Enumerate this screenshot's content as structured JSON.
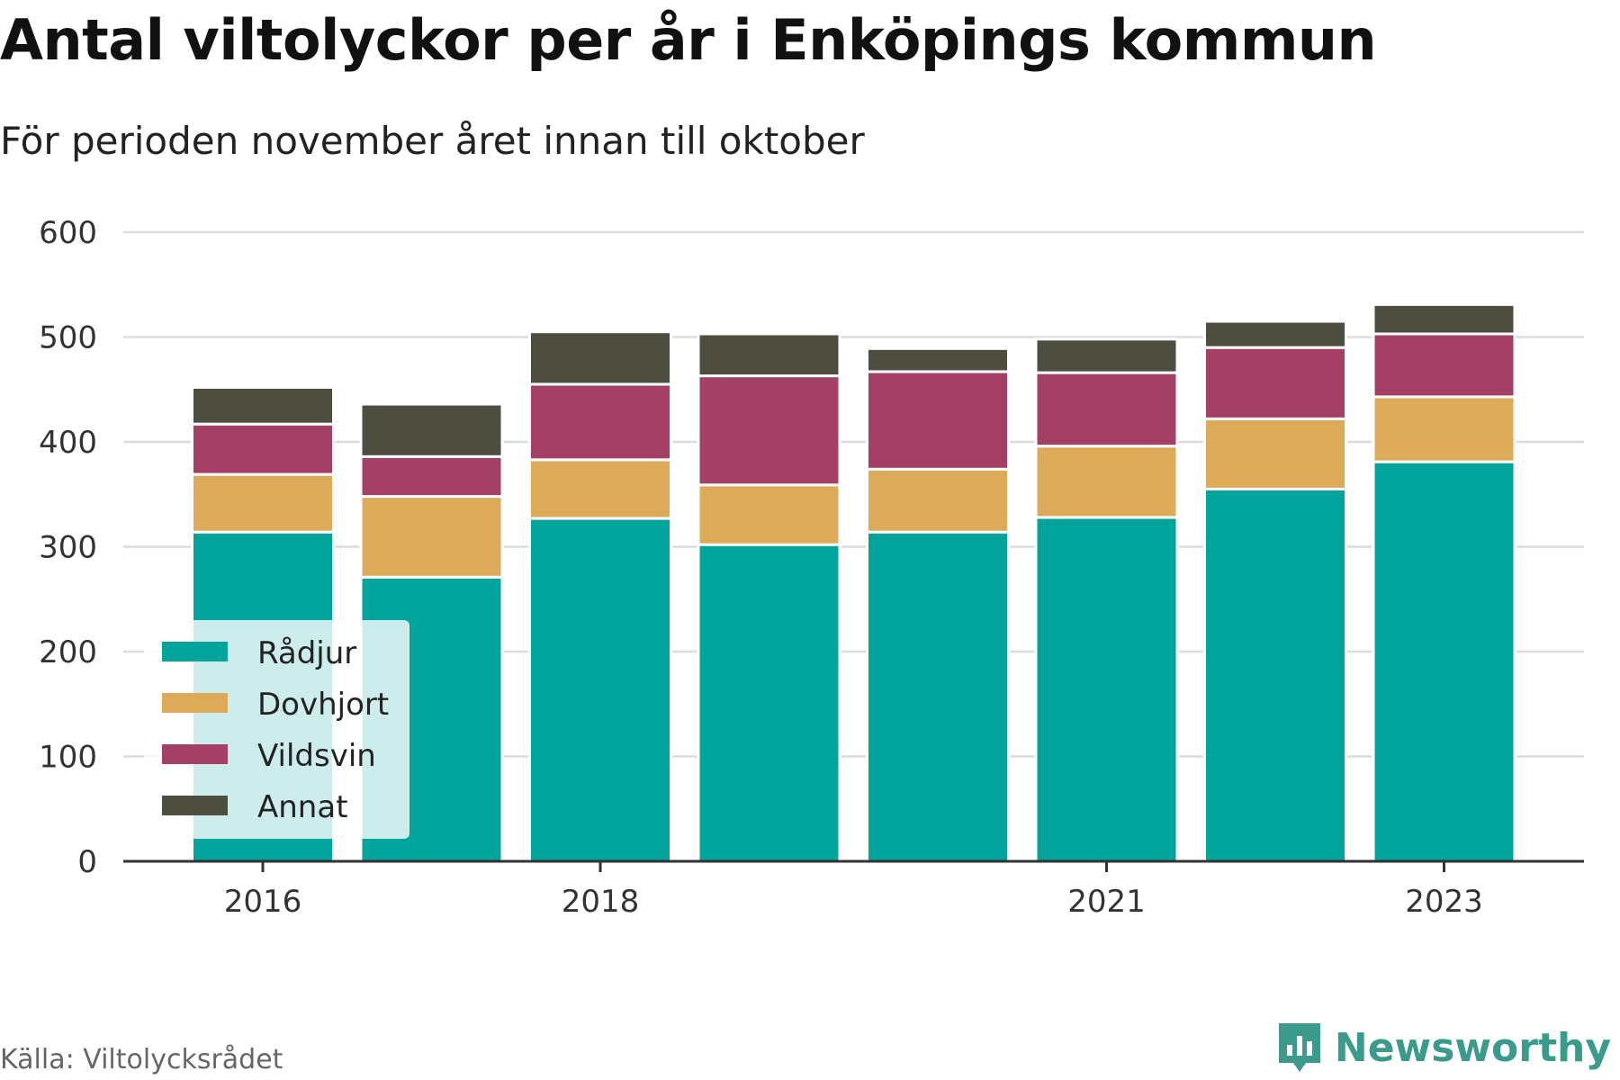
{
  "title": "Antal viltolyckor per år i Enköpings kommun",
  "subtitle": "För perioden november året innan till oktober",
  "source": "Källa: Viltolycksrådet",
  "brand": {
    "name": "Newsworthy",
    "icon": "newsworthy-logo-icon",
    "color": "#3a9a8c"
  },
  "chart_data": {
    "type": "bar",
    "stacked": true,
    "categories": [
      "2016",
      "2017",
      "2018",
      "2019",
      "2020",
      "2021",
      "2022",
      "2023"
    ],
    "x_tick_labels": [
      "2016",
      "",
      "2018",
      "",
      "",
      "2021",
      "",
      "2023"
    ],
    "ylim": [
      0,
      600
    ],
    "yticks": [
      0,
      100,
      200,
      300,
      400,
      500,
      600
    ],
    "grid": true,
    "legend_position": "bottom-left",
    "series": [
      {
        "name": "Rådjur",
        "color": "#00a49a",
        "values": [
          314,
          271,
          327,
          302,
          314,
          328,
          355,
          381
        ]
      },
      {
        "name": "Dovhjort",
        "color": "#dbab5a",
        "values": [
          55,
          77,
          56,
          57,
          60,
          68,
          67,
          62
        ]
      },
      {
        "name": "Vildsvin",
        "color": "#a44066",
        "values": [
          48,
          38,
          72,
          104,
          93,
          70,
          68,
          60
        ]
      },
      {
        "name": "Annat",
        "color": "#4d4d40",
        "values": [
          35,
          50,
          50,
          40,
          22,
          32,
          25,
          28
        ]
      }
    ]
  }
}
